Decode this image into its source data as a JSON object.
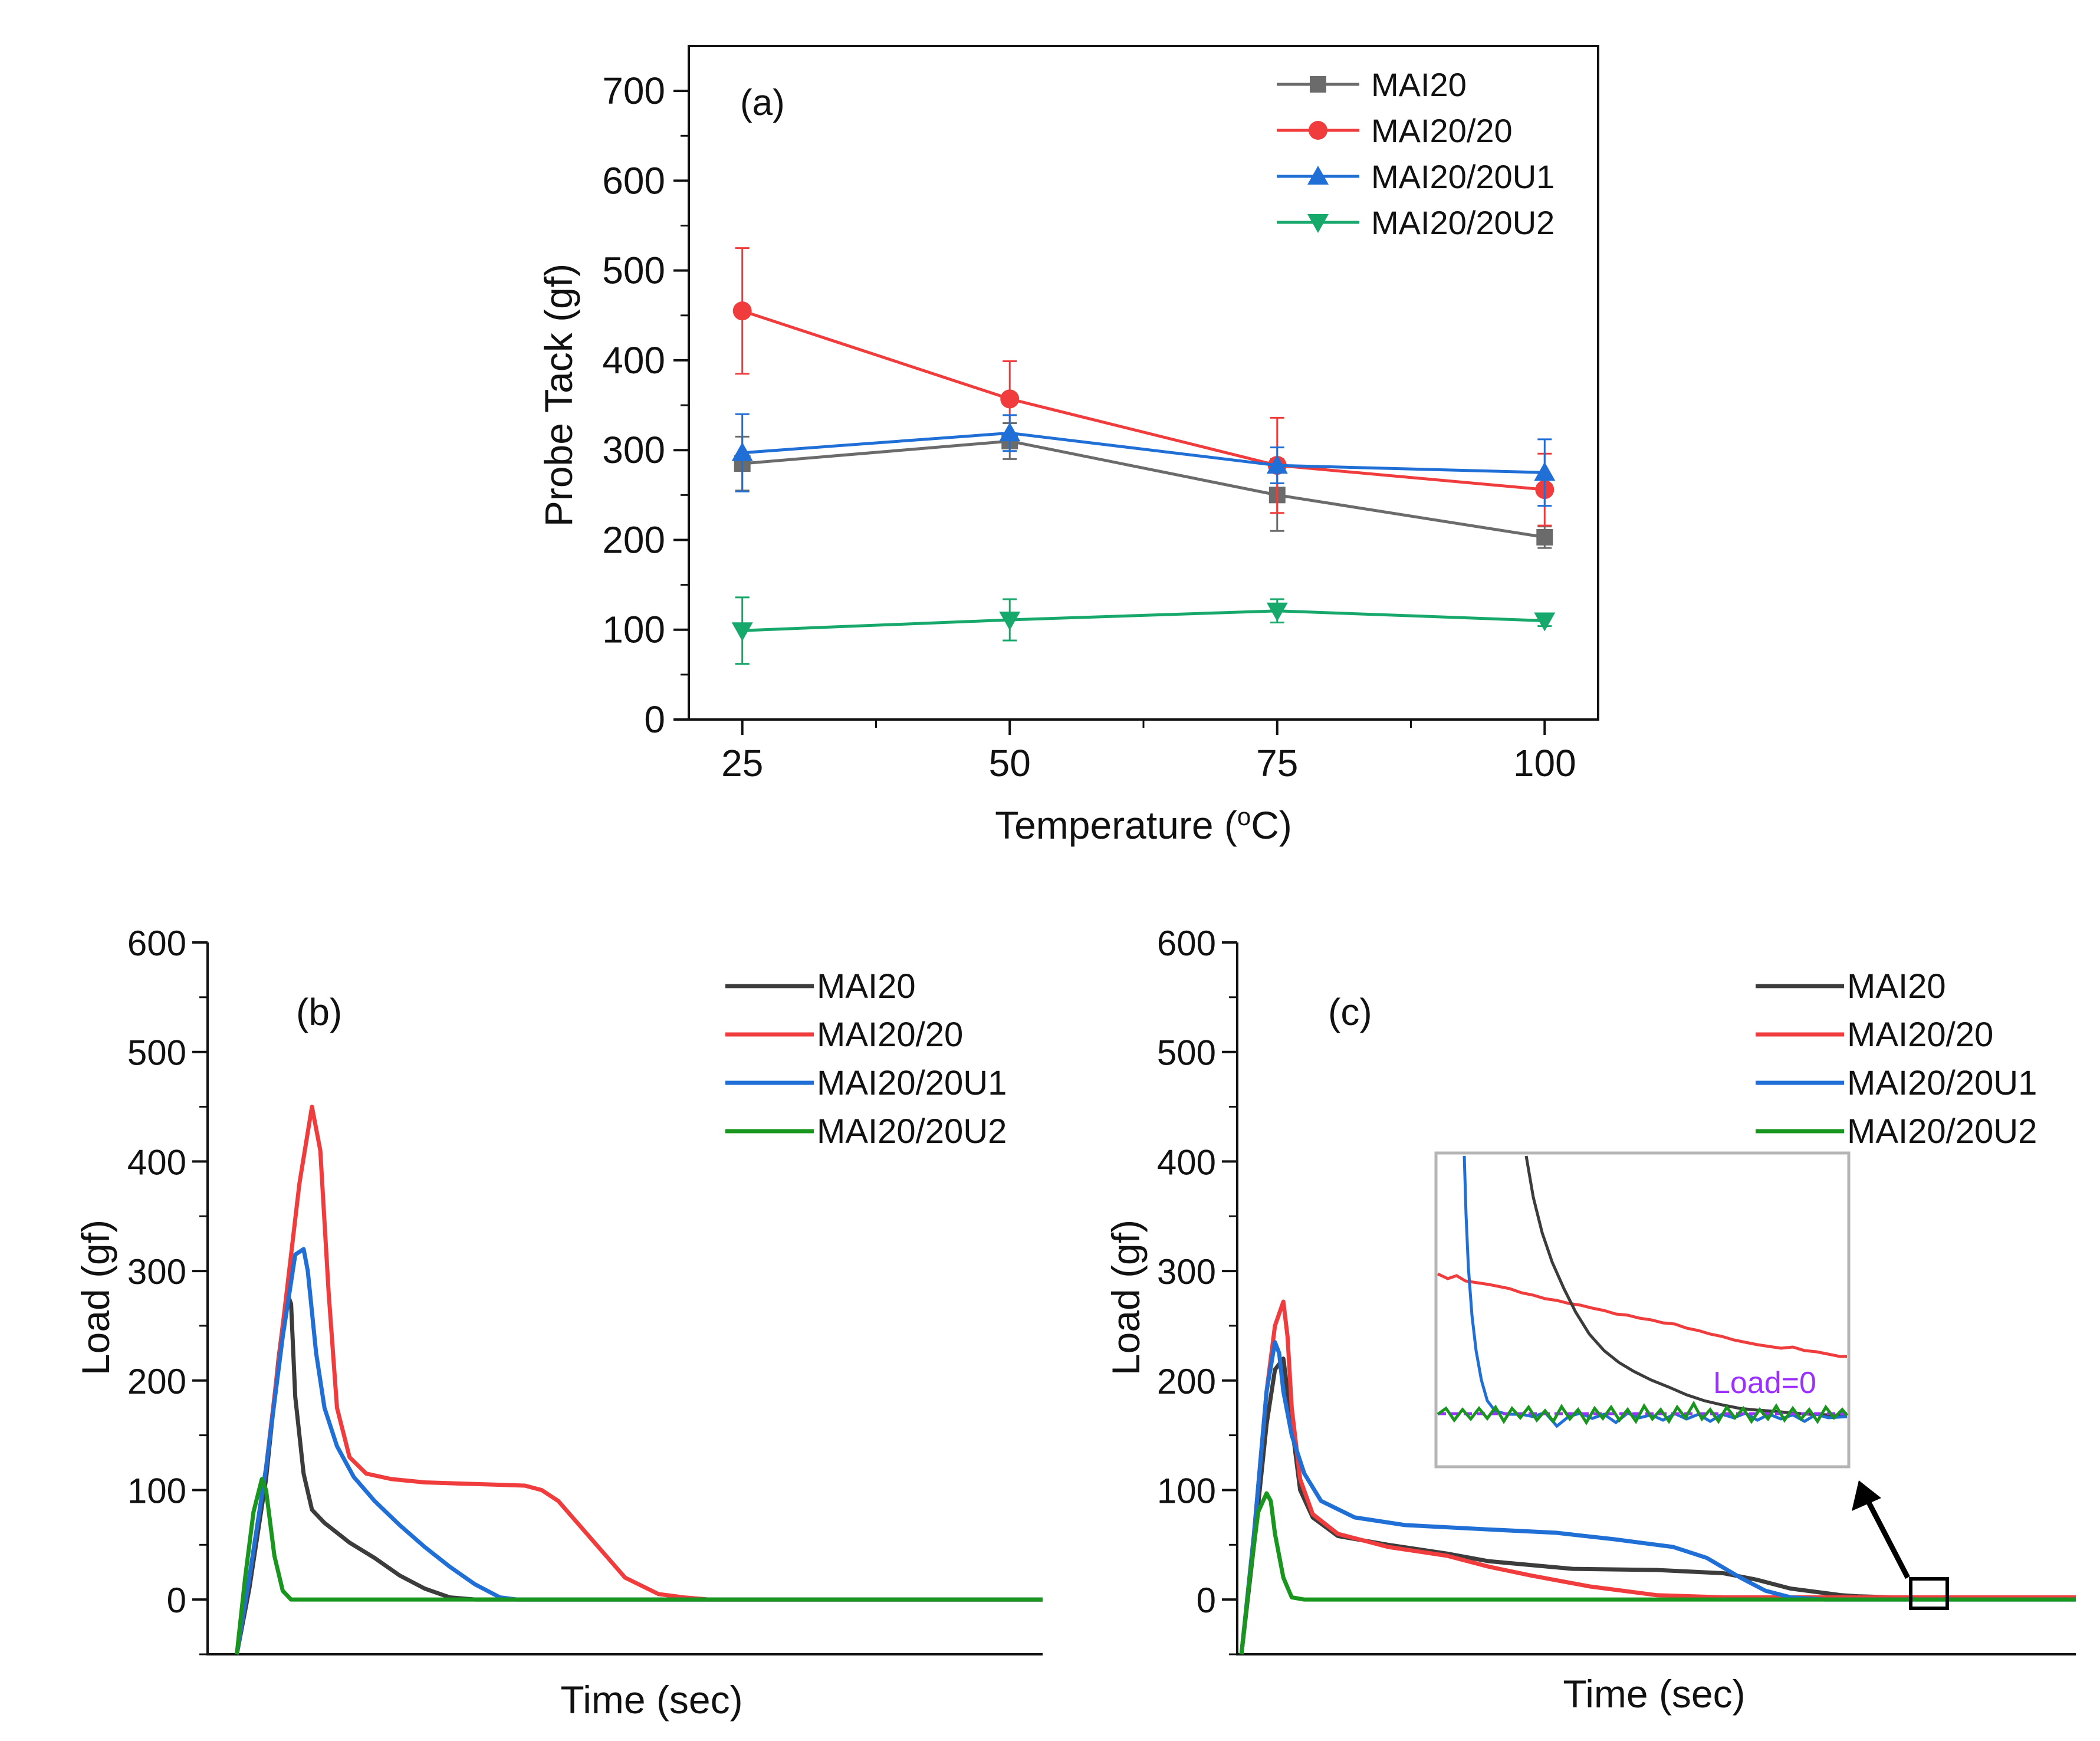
{
  "chart_data": [
    {
      "id": "a",
      "type": "line",
      "panel_label": "(a)",
      "xlabel": "Temperature (",
      "xlabel_sup": "o",
      "xlabel_tail": "C)",
      "ylabel": "Probe Tack (gf)",
      "x": [
        25,
        50,
        75,
        100
      ],
      "xlim": [
        20,
        105
      ],
      "ylim": [
        0,
        750
      ],
      "xticks": [
        25,
        50,
        75,
        100
      ],
      "yticks": [
        0,
        100,
        200,
        300,
        400,
        500,
        600,
        700
      ],
      "legend_position": "top-right",
      "series": [
        {
          "name": "MAI20",
          "color": "#6b6b6b",
          "marker": "square",
          "values": [
            285,
            310,
            250,
            203
          ],
          "errors": [
            30,
            20,
            40,
            12
          ]
        },
        {
          "name": "MAI20/20",
          "color": "#f03c3c",
          "marker": "circle",
          "values": [
            455,
            357,
            283,
            256
          ],
          "errors": [
            70,
            42,
            53,
            40
          ]
        },
        {
          "name": "MAI20/20U1",
          "color": "#1f6fd6",
          "marker": "triangle-up",
          "values": [
            297,
            319,
            283,
            275
          ],
          "errors": [
            43,
            20,
            20,
            37
          ]
        },
        {
          "name": "MAI20/20U2",
          "color": "#17a86b",
          "marker": "triangle-down",
          "values": [
            99,
            111,
            121,
            110
          ],
          "errors": [
            37,
            23,
            13,
            6
          ]
        }
      ]
    },
    {
      "id": "b",
      "type": "line",
      "panel_label": "(b)",
      "xlabel": "Time (sec)",
      "ylabel": "Load (gf)",
      "xlim": [
        0,
        100
      ],
      "ylim": [
        -50,
        600
      ],
      "yticks": [
        0,
        100,
        200,
        300,
        400,
        500,
        600
      ],
      "legend_position": "top-right",
      "series": [
        {
          "name": "MAI20",
          "color": "#3c3c3c",
          "x": [
            3.5,
            5,
            7,
            8.5,
            9.5,
            10,
            10.5,
            11.5,
            12.5,
            14,
            17,
            20,
            23,
            26,
            29,
            32,
            40,
            80,
            100
          ],
          "values": [
            -50,
            10,
            110,
            220,
            280,
            270,
            185,
            115,
            82,
            70,
            52,
            38,
            22,
            10,
            2,
            0,
            0,
            0,
            0
          ]
        },
        {
          "name": "MAI20/20",
          "color": "#f03c3c",
          "x": [
            3.5,
            5,
            7,
            9,
            11,
            12.5,
            13.5,
            14.5,
            15.5,
            17,
            19,
            22,
            26,
            30,
            34,
            38,
            40,
            42,
            46,
            50,
            54,
            57,
            60,
            64,
            80,
            100
          ],
          "values": [
            -50,
            20,
            120,
            250,
            380,
            450,
            410,
            280,
            175,
            130,
            115,
            110,
            107,
            106,
            105,
            104,
            100,
            90,
            55,
            20,
            5,
            2,
            0,
            0,
            0,
            0
          ]
        },
        {
          "name": "MAI20/20U1",
          "color": "#1f6fd6",
          "x": [
            3.5,
            5,
            7,
            9,
            10.5,
            11.5,
            12,
            13,
            14,
            15.5,
            17.5,
            20,
            23,
            26,
            29,
            32,
            35,
            37,
            40,
            100
          ],
          "values": [
            -50,
            20,
            120,
            240,
            315,
            320,
            300,
            225,
            175,
            140,
            112,
            90,
            68,
            48,
            30,
            14,
            2,
            0,
            0,
            0
          ]
        },
        {
          "name": "MAI20/20U2",
          "color": "#19961e",
          "x": [
            3.5,
            4.5,
            5.5,
            6.5,
            7,
            8,
            9,
            10,
            12,
            100
          ],
          "values": [
            -50,
            20,
            80,
            110,
            100,
            40,
            8,
            0,
            0,
            0
          ]
        }
      ]
    },
    {
      "id": "c",
      "type": "line",
      "panel_label": "(c)",
      "xlabel": "Time (sec)",
      "ylabel": "Load (gf)",
      "xlim": [
        0,
        100
      ],
      "ylim": [
        -50,
        600
      ],
      "yticks": [
        0,
        100,
        200,
        300,
        400,
        500,
        600
      ],
      "legend_position": "top-right",
      "inset_label": "Load=0",
      "series": [
        {
          "name": "MAI20",
          "color": "#3c3c3c",
          "x": [
            0.5,
            2,
            3.5,
            4.5,
            5.5,
            6.5,
            7.5,
            9,
            12,
            18,
            25,
            30,
            40,
            50,
            58,
            62,
            66,
            70,
            72,
            74,
            78,
            100
          ],
          "values": [
            -50,
            50,
            160,
            210,
            220,
            160,
            100,
            75,
            58,
            50,
            42,
            35,
            28,
            27,
            24,
            18,
            10,
            6,
            4,
            3,
            2,
            2
          ]
        },
        {
          "name": "MAI20/20",
          "color": "#f03c3c",
          "x": [
            0.5,
            2,
            3.5,
            4.5,
            5.5,
            6,
            6.5,
            7.5,
            9,
            12,
            18,
            25,
            30,
            35,
            42,
            50,
            58,
            62,
            66,
            70,
            74,
            100
          ],
          "values": [
            -50,
            60,
            190,
            250,
            272,
            240,
            175,
            110,
            78,
            60,
            48,
            40,
            30,
            22,
            12,
            4,
            2,
            2,
            2,
            2,
            2,
            2
          ]
        },
        {
          "name": "MAI20/20U1",
          "color": "#1f6fd6",
          "x": [
            0.5,
            2,
            3.5,
            4.5,
            5,
            5.5,
            6.5,
            8,
            10,
            14,
            20,
            30,
            38,
            45,
            52,
            56,
            60,
            63,
            66,
            70,
            100
          ],
          "values": [
            -50,
            60,
            190,
            235,
            225,
            190,
            150,
            115,
            90,
            75,
            68,
            64,
            61,
            55,
            48,
            38,
            20,
            8,
            2,
            0,
            0
          ]
        },
        {
          "name": "MAI20/20U2",
          "color": "#19961e",
          "x": [
            0.5,
            1.5,
            2.5,
            3.5,
            4,
            4.5,
            5.5,
            6.5,
            8,
            100
          ],
          "values": [
            -50,
            20,
            80,
            97,
            90,
            60,
            20,
            2,
            0,
            0
          ]
        }
      ]
    }
  ]
}
